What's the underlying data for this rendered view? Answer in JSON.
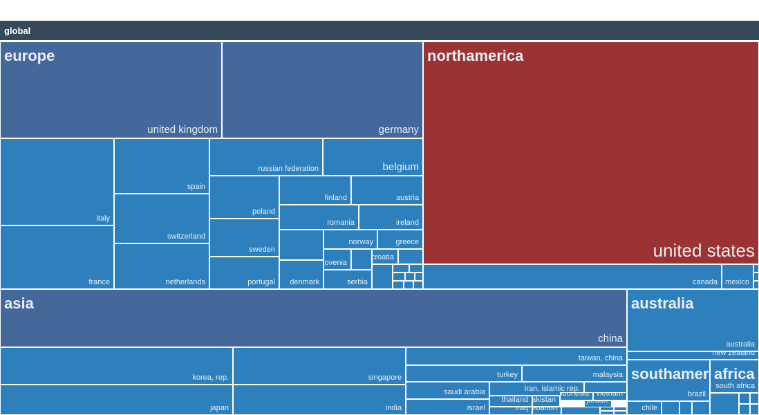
{
  "header": {
    "title": "global"
  },
  "colors": {
    "header": "#34495a",
    "region": "#45689a",
    "cell": "#2e80bd",
    "highlight": "#9a3333"
  },
  "chart_data": {
    "type": "treemap",
    "root": "global",
    "regions": [
      {
        "name": "europe",
        "countries": [
          "united kingdom",
          "germany",
          "italy",
          "france",
          "spain",
          "netherlands",
          "switzerland",
          "russian federation",
          "belgium",
          "finland",
          "austria",
          "poland",
          "romania",
          "ireland",
          "sweden",
          "norway",
          "greece",
          "portugal",
          "denmark",
          "slovenia",
          "croatia",
          "serbia"
        ]
      },
      {
        "name": "northamerica",
        "countries": [
          "united states",
          "canada",
          "mexico"
        ]
      },
      {
        "name": "asia",
        "countries": [
          "china",
          "korea, rep.",
          "singapore",
          "japan",
          "india",
          "taiwan, china",
          "turkey",
          "malaysia",
          "saudi arabia",
          "iran, islamic rep.",
          "israel",
          "thailand",
          "pakistan",
          "indonesia",
          "vietnam",
          "jordan",
          "iraq",
          "lebanon"
        ]
      },
      {
        "name": "australia",
        "countries": [
          "australia",
          "new zealand"
        ]
      },
      {
        "name": "southamerica",
        "countries": [
          "brazil",
          "chile"
        ]
      },
      {
        "name": "africa",
        "countries": [
          "south africa"
        ]
      }
    ]
  }
}
